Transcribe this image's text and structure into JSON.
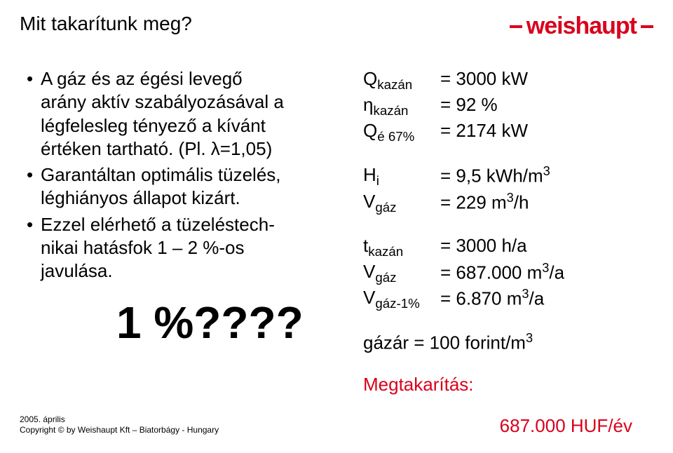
{
  "header": {
    "title": "Mit takarítunk meg?",
    "brand": "weishaupt",
    "brand_color": "#d9001b"
  },
  "left": {
    "b1_l1": "A gáz és az égési levegő",
    "b1_l2": "arány aktív szabályozásával a",
    "b1_l3": "légfelesleg tényező a kívánt",
    "b1_l4": "értéken tartható. (Pl. λ=1,05)",
    "b2_l1": "Garantáltan optimális tüzelés,",
    "b2_l2": "léghiányos állapot kizárt.",
    "b3_l1": "Ezzel elérhető a tüzeléstech-",
    "b3_l2": "nikai hatásfok 1 – 2 %-os",
    "b3_l3": "javulása.",
    "big": "1 %????"
  },
  "right": {
    "r1_sym_base": "Q",
    "r1_sym_sub": "kazán",
    "r1_val": "= 3000 kW",
    "r2_sym_base": "η",
    "r2_sym_sub": "kazán",
    "r2_val": "= 92 %",
    "r3_sym_base": "Q",
    "r3_sym_sub": "é  67%",
    "r3_val": "= 2174 kW",
    "r4_sym_base": "H",
    "r4_sym_sub": "i",
    "r4_val_a": "= 9,5 kWh/m",
    "r4_sup": "3",
    "r5_sym_base": "V",
    "r5_sym_sub": "gáz",
    "r5_val_a": "= 229 m",
    "r5_sup": "3",
    "r5_val_b": "/h",
    "r6_sym_base": "t",
    "r6_sym_sub": "kazán",
    "r6_val": "= 3000 h/a",
    "r7_sym_base": "V",
    "r7_sym_sub": "gáz",
    "r7_val_a": "= 687.000    m",
    "r7_sup": "3",
    "r7_val_b": "/a",
    "r8_sym_base": "V",
    "r8_sym_sub": "gáz-1%",
    "r8_val_a": "= 6.870    m",
    "r8_sup": "3",
    "r8_val_b": "/a",
    "r9_a": "gázár = 100 forint/m",
    "r9_sup": "3",
    "r10": "Megtakarítás:",
    "r11": "687.000 HUF/év"
  },
  "footer": {
    "l1": "2005. április",
    "l2": "Copyright © by Weishaupt Kft – Biatorbágy - Hungary"
  },
  "styles": {
    "title_fontsize": 28,
    "body_fontsize": 26,
    "big_fontsize": 64,
    "footer_fontsize": 12,
    "text_color": "#000000",
    "accent_color": "#d9001b",
    "background_color": "#ffffff"
  }
}
